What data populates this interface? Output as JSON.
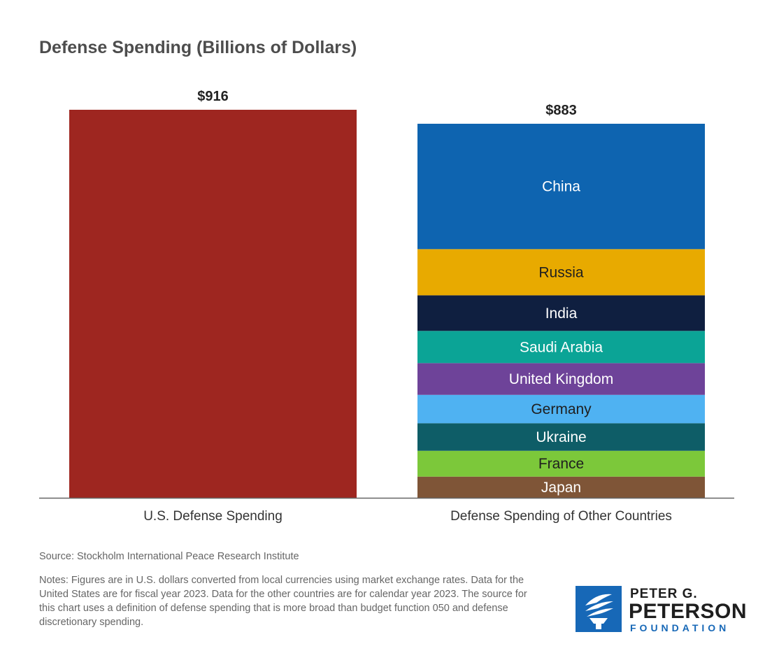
{
  "chart_data": {
    "type": "bar",
    "title": "Defense Spending (Billions of Dollars)",
    "categories": [
      "U.S. Defense Spending",
      "Defense Spending of Other Countries"
    ],
    "totals": [
      916,
      883
    ],
    "value_labels": [
      "$916",
      "$883"
    ],
    "ylim": [
      0,
      916
    ],
    "grid": false,
    "legend": "none",
    "series": [
      {
        "name": "U.S.",
        "values": [
          916,
          0
        ],
        "color": "#9e2620",
        "label_color": "#ffffff"
      },
      {
        "name": "Japan",
        "values": [
          0,
          50
        ],
        "color": "#7f5537",
        "label_color": "#ffffff"
      },
      {
        "name": "France",
        "values": [
          0,
          61
        ],
        "color": "#7cc83a",
        "label_color": "#1f1f1f"
      },
      {
        "name": "Ukraine",
        "values": [
          0,
          65
        ],
        "color": "#0e5d67",
        "label_color": "#ffffff"
      },
      {
        "name": "Germany",
        "values": [
          0,
          67
        ],
        "color": "#4fb2f2",
        "label_color": "#1f1f1f"
      },
      {
        "name": "United Kingdom",
        "values": [
          0,
          75
        ],
        "color": "#6e4399",
        "label_color": "#ffffff"
      },
      {
        "name": "Saudi Arabia",
        "values": [
          0,
          76
        ],
        "color": "#0ba496",
        "label_color": "#ffffff"
      },
      {
        "name": "India",
        "values": [
          0,
          84
        ],
        "color": "#0f1f40",
        "label_color": "#ffffff"
      },
      {
        "name": "Russia",
        "values": [
          0,
          109
        ],
        "color": "#e8aa00",
        "label_color": "#1f1f1f"
      },
      {
        "name": "China",
        "values": [
          0,
          296
        ],
        "color": "#0e64b0",
        "label_color": "#ffffff"
      }
    ]
  },
  "footer": {
    "source": "Source: Stockholm International Peace Research Institute",
    "notes": "Notes: Figures are in U.S. dollars converted from local currencies using market exchange rates. Data for the United States are for fiscal year 2023. Data for the other countries are for calendar year 2023. The source for this chart uses a definition of defense spending that is more broad than budget function 050 and defense discretionary spending."
  },
  "logo": {
    "line1": "PETER G.",
    "line2": "PETERSON",
    "line3": "FOUNDATION",
    "icon": "torch-icon"
  }
}
